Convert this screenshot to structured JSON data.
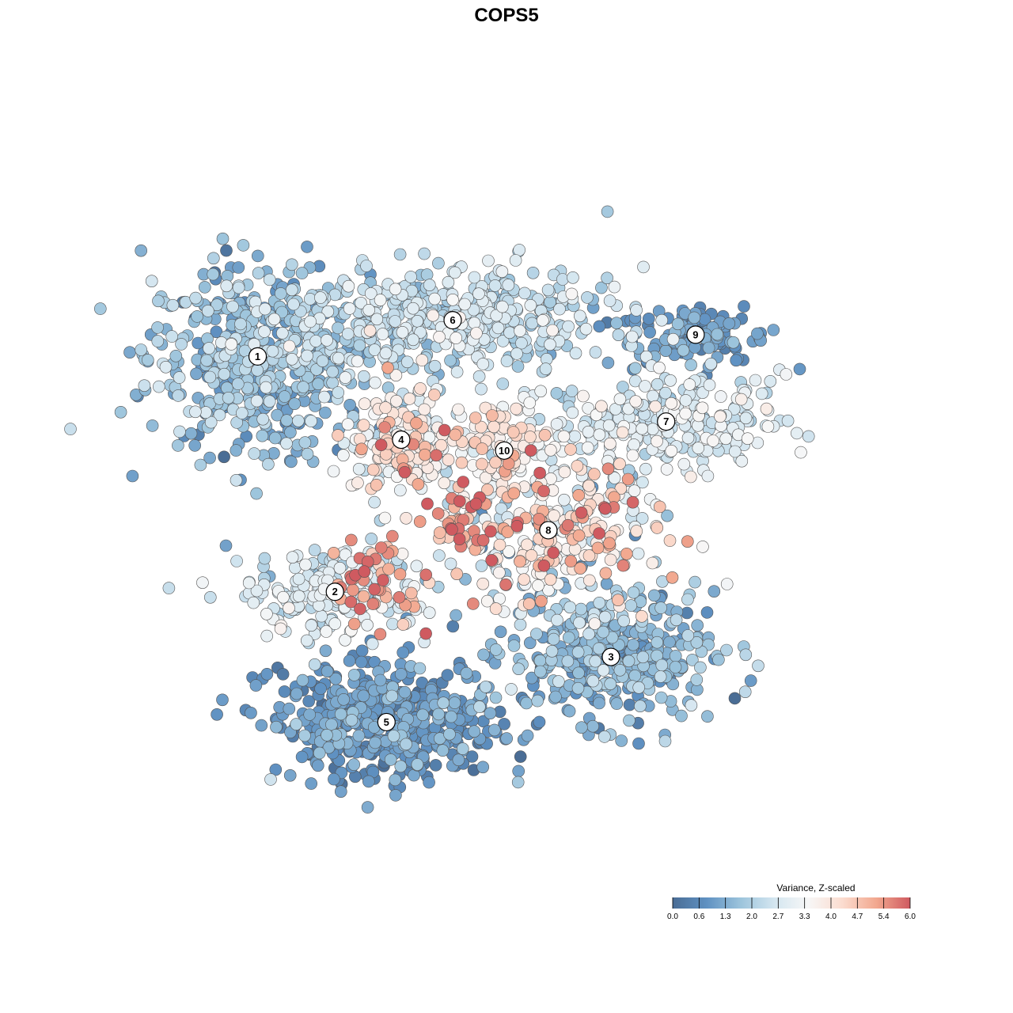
{
  "chart_data": {
    "type": "scatter",
    "title": "COPS5",
    "xlabel": "",
    "ylabel": "",
    "grid": false,
    "legend_position": "bottom-right",
    "color_scale": {
      "title": "Variance, Z-scaled",
      "min": 0.0,
      "max": 6.0,
      "ticks": [
        "0.0",
        "0.6",
        "1.3",
        "2.0",
        "2.7",
        "3.3",
        "4.0",
        "4.7",
        "5.4",
        "6.0"
      ],
      "colors": [
        "#4a6d95",
        "#5f91c2",
        "#9cc4dc",
        "#d4e6f0",
        "#f7f7f7",
        "#fbdccf",
        "#f2a88f",
        "#cf5a60"
      ]
    },
    "x_range": [
      0,
      100
    ],
    "y_range": [
      0,
      100
    ],
    "clusters": [
      {
        "id": "1",
        "label": "1",
        "x": 13.5,
        "y": 71.0,
        "value": 1.6
      },
      {
        "id": "2",
        "label": "2",
        "x": 24.0,
        "y": 38.5,
        "value": 2.6
      },
      {
        "id": "3",
        "label": "3",
        "x": 61.5,
        "y": 29.5,
        "value": 1.4
      },
      {
        "id": "4",
        "label": "4",
        "x": 33.0,
        "y": 59.5,
        "value": 3.4
      },
      {
        "id": "5",
        "label": "5",
        "x": 31.0,
        "y": 20.5,
        "value": 0.9
      },
      {
        "id": "6",
        "label": "6",
        "x": 40.0,
        "y": 76.0,
        "value": 2.3
      },
      {
        "id": "7",
        "label": "7",
        "x": 69.0,
        "y": 62.0,
        "value": 2.7
      },
      {
        "id": "8",
        "label": "8",
        "x": 53.0,
        "y": 47.0,
        "value": 3.6
      },
      {
        "id": "9",
        "label": "9",
        "x": 73.0,
        "y": 74.0,
        "value": 1.0
      },
      {
        "id": "10",
        "label": "10",
        "x": 47.0,
        "y": 58.0,
        "value": 3.8
      }
    ]
  }
}
